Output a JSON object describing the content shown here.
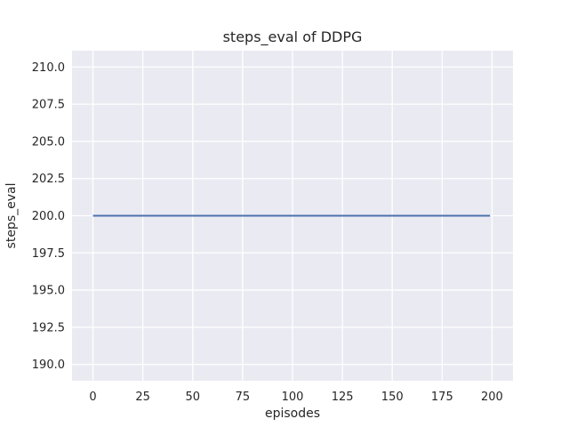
{
  "figure": {
    "background_color": "#ffffff",
    "plot_background_color": "#eaeaf2",
    "grid_color": "#ffffff",
    "text_color": "#262626",
    "style": "seaborn-darkgrid"
  },
  "chart_data": {
    "type": "line",
    "title": "steps_eval of DDPG",
    "xlabel": "episodes",
    "ylabel": "steps_eval",
    "x_tick_labels": [
      "0",
      "25",
      "50",
      "75",
      "100",
      "125",
      "150",
      "175",
      "200"
    ],
    "y_tick_labels": [
      "190.0",
      "192.5",
      "195.0",
      "197.5",
      "200.0",
      "202.5",
      "205.0",
      "207.5",
      "210.0"
    ],
    "xlim": [
      -10.5,
      210.5
    ],
    "ylim": [
      188.9,
      211.1
    ],
    "grid": true,
    "legend": false,
    "series": [
      {
        "name": "steps_eval",
        "color": "#4c72b0",
        "line_width": 2,
        "constant_value": 200.0,
        "x_start": 0,
        "x_end": 199,
        "points": [
          [
            0,
            200.0
          ],
          [
            199,
            200.0
          ]
        ]
      }
    ]
  }
}
